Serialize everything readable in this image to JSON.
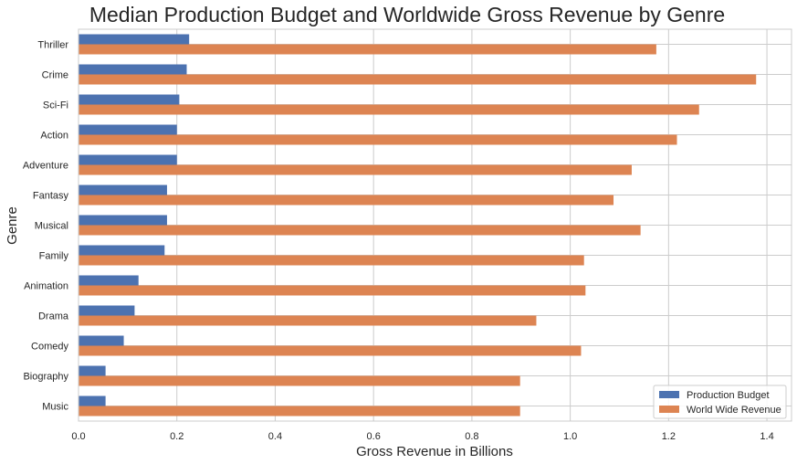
{
  "chart_data": {
    "type": "bar",
    "orientation": "horizontal",
    "title": "Median Production Budget and Worldwide Gross Revenue by Genre",
    "xlabel": "Gross Revenue in Billions",
    "ylabel": "Genre",
    "xlim": [
      0,
      1.45
    ],
    "xticks": [
      "0.0",
      "0.2",
      "0.4",
      "0.6",
      "0.8",
      "1.0",
      "1.2",
      "1.4"
    ],
    "grid": true,
    "legend_position": "bottom-right",
    "categories": [
      "Thriller",
      "Crime",
      "Sci-Fi",
      "Action",
      "Adventure",
      "Fantasy",
      "Musical",
      "Family",
      "Animation",
      "Drama",
      "Comedy",
      "Biography",
      "Music"
    ],
    "series": [
      {
        "name": "Production Budget",
        "color": "#4c72b0",
        "values": [
          0.225,
          0.22,
          0.205,
          0.2,
          0.2,
          0.18,
          0.18,
          0.175,
          0.122,
          0.114,
          0.092,
          0.055,
          0.055
        ]
      },
      {
        "name": "World Wide Revenue",
        "color": "#dd8452",
        "values": [
          1.175,
          1.378,
          1.262,
          1.217,
          1.125,
          1.088,
          1.143,
          1.028,
          1.031,
          0.931,
          1.022,
          0.898,
          0.898
        ]
      }
    ]
  }
}
